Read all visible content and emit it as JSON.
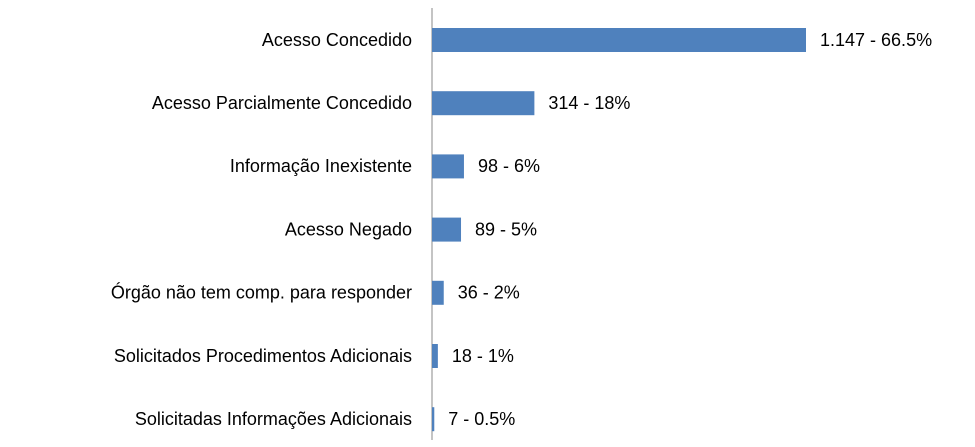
{
  "chart_data": {
    "type": "bar",
    "orientation": "horizontal",
    "categories": [
      "Acesso Concedido",
      "Acesso Parcialmente Concedido",
      "Informação Inexistente",
      "Acesso Negado",
      "Órgão não tem comp. para responder",
      "Solicitados Procedimentos Adicionais",
      "Solicitadas Informações Adicionais"
    ],
    "values": [
      1147,
      314,
      98,
      89,
      36,
      18,
      7
    ],
    "value_labels": [
      "1.147 - 66.5%",
      "314 - 18%",
      "98 - 6%",
      "89 - 5%",
      "36 - 2%",
      "18 - 1%",
      "7 - 0.5%"
    ],
    "color": "#4f81bd"
  }
}
